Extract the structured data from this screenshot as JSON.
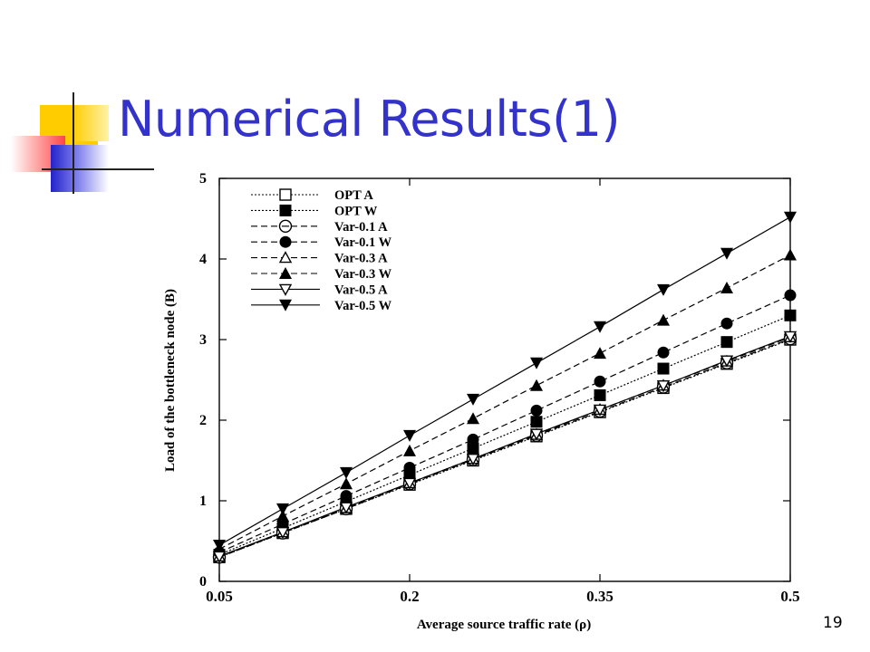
{
  "slide": {
    "title": "Numerical Results(1)",
    "number": "19"
  },
  "colors": {
    "title": "#3333cc",
    "deco_yellow": "#ffcc00",
    "deco_blue": "#3333cc",
    "deco_red": "#ff3333"
  },
  "chart_data": {
    "type": "line",
    "xlabel": "Average source traffic rate (ρ)",
    "ylabel": "Load of the bottleneck node (B)",
    "xlim": [
      0.05,
      0.5
    ],
    "ylim": [
      0,
      5
    ],
    "xticks": [
      "0.05",
      "0.2",
      "0.35",
      "0.5"
    ],
    "xtick_values": [
      0.05,
      0.2,
      0.35,
      0.5
    ],
    "yticks": [
      "0",
      "1",
      "2",
      "3",
      "4",
      "5"
    ],
    "ytick_values": [
      0,
      1,
      2,
      3,
      4,
      5
    ],
    "grid": false,
    "legend_position": "top-left",
    "x": [
      0.05,
      0.1,
      0.15,
      0.2,
      0.25,
      0.3,
      0.35,
      0.4,
      0.45,
      0.5
    ],
    "series": [
      {
        "name": "OPT A",
        "line": "dotted",
        "marker": "square-open",
        "values": [
          0.3,
          0.6,
          0.9,
          1.2,
          1.5,
          1.8,
          2.1,
          2.4,
          2.7,
          3.0
        ]
      },
      {
        "name": "OPT W",
        "line": "dotted",
        "marker": "square-filled",
        "values": [
          0.33,
          0.66,
          0.99,
          1.32,
          1.65,
          1.98,
          2.31,
          2.64,
          2.97,
          3.3
        ]
      },
      {
        "name": "Var-0.1 A",
        "line": "dashed",
        "marker": "circle-open",
        "values": [
          0.3,
          0.6,
          0.9,
          1.21,
          1.51,
          1.81,
          2.11,
          2.41,
          2.71,
          3.01
        ]
      },
      {
        "name": "Var-0.1 W",
        "line": "dashed",
        "marker": "circle-filled",
        "values": [
          0.36,
          0.71,
          1.06,
          1.41,
          1.76,
          2.12,
          2.48,
          2.84,
          3.2,
          3.55
        ]
      },
      {
        "name": "Var-0.3 A",
        "line": "dashed",
        "marker": "triangle-up-open",
        "values": [
          0.31,
          0.61,
          0.91,
          1.22,
          1.52,
          1.82,
          2.13,
          2.43,
          2.73,
          3.03
        ]
      },
      {
        "name": "Var-0.3 W",
        "line": "dashed",
        "marker": "triangle-up-filled",
        "values": [
          0.4,
          0.81,
          1.21,
          1.62,
          2.02,
          2.43,
          2.83,
          3.24,
          3.64,
          4.05
        ]
      },
      {
        "name": "Var-0.5 A",
        "line": "solid",
        "marker": "triangle-down-open",
        "values": [
          0.31,
          0.61,
          0.92,
          1.22,
          1.52,
          1.83,
          2.13,
          2.43,
          2.74,
          3.04
        ]
      },
      {
        "name": "Var-0.5 W",
        "line": "solid",
        "marker": "triangle-down-filled",
        "values": [
          0.45,
          0.9,
          1.35,
          1.81,
          2.26,
          2.71,
          3.16,
          3.62,
          4.07,
          4.52
        ]
      }
    ]
  }
}
